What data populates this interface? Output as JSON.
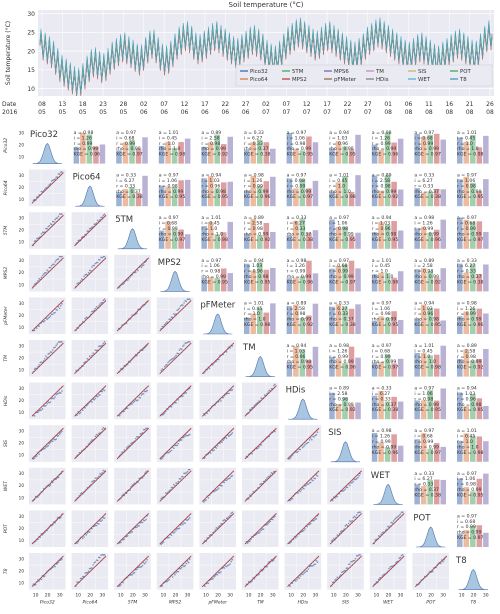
{
  "chart_data": [
    {
      "type": "line",
      "title": "Soil temperature (°C)",
      "ylabel": "Soil temperature (°C)",
      "ylim": [
        8,
        31
      ],
      "yticks": [
        10,
        15,
        20,
        25,
        30
      ],
      "date_axis_label_top": "Date",
      "date_axis_label_bottom": "2016",
      "x_day_labels": [
        "08",
        "13",
        "18",
        "23",
        "28",
        "02",
        "07",
        "12",
        "17",
        "22",
        "27",
        "02",
        "07",
        "12",
        "17",
        "22",
        "27",
        "01",
        "06",
        "11",
        "16",
        "21",
        "26"
      ],
      "x_month_labels": [
        "05",
        "05",
        "05",
        "05",
        "05",
        "06",
        "06",
        "06",
        "06",
        "06",
        "06",
        "07",
        "07",
        "07",
        "07",
        "07",
        "07",
        "08",
        "08",
        "08",
        "08",
        "08",
        "08"
      ],
      "legend_placement": "bottom-right",
      "grid": true,
      "series": [
        {
          "name": "Pico32",
          "color": "#4c72b0"
        },
        {
          "name": "Pico64",
          "color": "#dd8452"
        },
        {
          "name": "5TM",
          "color": "#55a868"
        },
        {
          "name": "MPS2",
          "color": "#c44e52"
        },
        {
          "name": "MPS6",
          "color": "#8172b3"
        },
        {
          "name": "pFMeter",
          "color": "#937860"
        },
        {
          "name": "TM",
          "color": "#da8bc3"
        },
        {
          "name": "HDis",
          "color": "#8c8c8c"
        },
        {
          "name": "SIS",
          "color": "#ccb974"
        },
        {
          "name": "WET",
          "color": "#64b5cd"
        },
        {
          "name": "POT",
          "color": "#55a868"
        },
        {
          "name": "T8",
          "color": "#4c9fc4"
        }
      ],
      "daily_mean_sample": [
        22,
        21,
        20,
        19,
        17,
        15,
        14,
        13,
        12,
        11,
        12,
        14,
        16,
        17,
        16,
        15,
        16,
        18,
        19,
        20,
        21,
        20,
        19,
        18,
        17,
        19,
        21,
        22,
        20,
        18,
        17,
        18,
        20,
        22,
        23,
        24,
        23,
        21,
        20,
        21,
        22,
        23,
        24,
        23,
        22,
        21,
        20,
        19,
        20,
        21,
        22,
        23,
        22,
        21,
        19,
        18,
        17,
        18,
        20,
        22,
        23,
        24,
        25,
        24,
        23,
        22,
        21,
        22,
        23,
        24,
        23,
        22,
        21,
        20,
        19,
        18,
        19,
        20,
        22,
        23,
        24,
        25,
        24,
        23,
        22,
        21,
        20,
        19,
        18,
        19,
        20,
        21,
        20,
        19,
        18,
        17,
        18,
        19,
        20,
        21,
        22,
        21,
        20,
        19,
        18,
        20,
        22,
        24
      ],
      "daily_amplitude": 3.2
    },
    {
      "type": "scatter",
      "title": "",
      "variables": [
        "Pico32",
        "Pico64",
        "5TM",
        "MPS2",
        "pFMeter",
        "TM",
        "HDis",
        "SIS",
        "WET",
        "POT",
        "T8"
      ],
      "axis_ticks": [
        10,
        20,
        30
      ],
      "stat_rows": [
        [
          "a = 0.94",
          "i = 1.03",
          "r = 0.96",
          "rho = 0.98",
          "KGE = 0.95"
        ],
        [
          "a = 0.98",
          "i = 1.26",
          "r = 0.99",
          "rho = 0.99",
          "KGE = 0.96"
        ],
        [
          "a = 0.97",
          "i = 0.68",
          "r = 0.99",
          "rho = 0.99",
          "KGE = 0.97"
        ],
        [
          "a = 1.01",
          "i = 0.45",
          "r = 1.0",
          "rho = 1.0",
          "KGE = 0.98"
        ],
        [
          "a = 0.89",
          "i = 2.58",
          "r = 0.98",
          "rho = 0.99",
          "KGE = 0.92"
        ],
        [
          "a = 0.33",
          "i = 6.27",
          "r = 0.33",
          "rho = 0.37",
          "KGE = 0.38"
        ],
        [
          "a = 0.97",
          "i = 1.06",
          "r = 0.98",
          "rho = 0.99",
          "KGE = 0.95"
        ]
      ],
      "note": "Lower triangle: pairwise scatter with 1:1 line and fit; diagonal: density; upper triangle: regression statistics."
    }
  ]
}
